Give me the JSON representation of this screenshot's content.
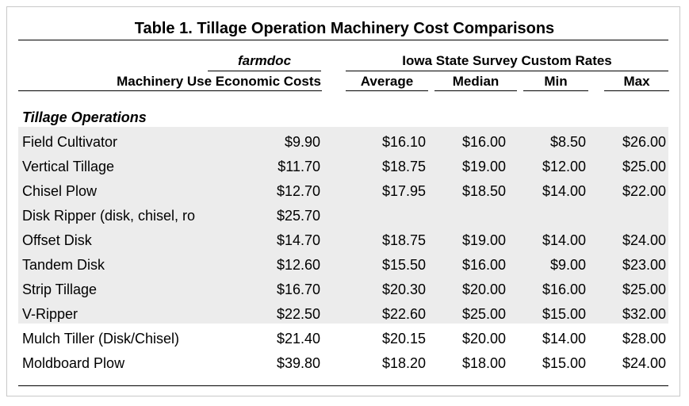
{
  "title": "Table 1. Tillage Operation Machinery Cost Comparisons",
  "headers": {
    "farmdoc": "farmdoc",
    "survey_group": "Iowa State Survey Custom Rates",
    "machinery_use": "Machinery Use Economic Costs",
    "average": "Average",
    "median": "Median",
    "min": "Min",
    "max": "Max"
  },
  "section": "Tillage Operations",
  "rows": [
    {
      "name": "Field Cultivator",
      "econ": "$9.90",
      "average": "$16.10",
      "median": "$16.00",
      "min": "$8.50",
      "max": "$26.00"
    },
    {
      "name": "Vertical Tillage",
      "econ": "$11.70",
      "average": "$18.75",
      "median": "$19.00",
      "min": "$12.00",
      "max": "$25.00"
    },
    {
      "name": "Chisel Plow",
      "econ": "$12.70",
      "average": "$17.95",
      "median": "$18.50",
      "min": "$14.00",
      "max": "$22.00"
    },
    {
      "name": "Disk Ripper (disk, chisel, ro",
      "econ": "$25.70",
      "average": "",
      "median": "",
      "min": "",
      "max": ""
    },
    {
      "name": "Offset Disk",
      "econ": "$14.70",
      "average": "$18.75",
      "median": "$19.00",
      "min": "$14.00",
      "max": "$24.00"
    },
    {
      "name": "Tandem Disk",
      "econ": "$12.60",
      "average": "$15.50",
      "median": "$16.00",
      "min": "$9.00",
      "max": "$23.00"
    },
    {
      "name": "Strip Tillage",
      "econ": "$16.70",
      "average": "$20.30",
      "median": "$20.00",
      "min": "$16.00",
      "max": "$25.00"
    },
    {
      "name": "V-Ripper",
      "econ": "$22.50",
      "average": "$22.60",
      "median": "$25.00",
      "min": "$15.00",
      "max": "$32.00"
    },
    {
      "name": "Mulch Tiller (Disk/Chisel)",
      "econ": "$21.40",
      "average": "$20.15",
      "median": "$20.00",
      "min": "$14.00",
      "max": "$28.00"
    },
    {
      "name": "Moldboard Plow",
      "econ": "$39.80",
      "average": "$18.20",
      "median": "$18.00",
      "min": "$15.00",
      "max": "$24.00"
    }
  ]
}
